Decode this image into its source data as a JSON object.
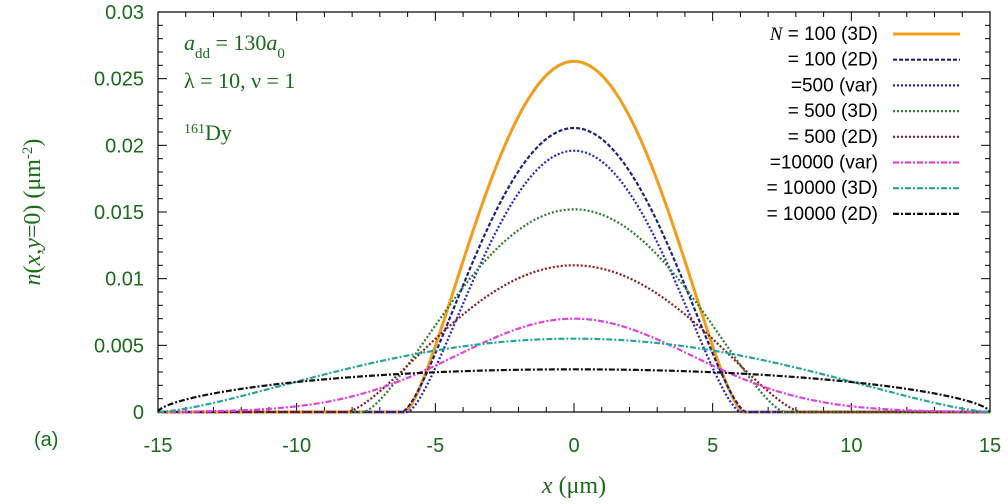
{
  "chart_data": {
    "type": "line",
    "panel_label": "(a)",
    "xlabel": "x (μm)",
    "ylabel": "n(x,y=0) (μm⁻²)",
    "xlim": [
      -15,
      15
    ],
    "ylim": [
      0,
      0.03
    ],
    "xticks": [
      "-15",
      "-10",
      "-5",
      "0",
      "5",
      "10",
      "15"
    ],
    "xtick_values": [
      -15,
      -10,
      -5,
      0,
      5,
      10,
      15
    ],
    "yticks": [
      "0",
      "0.005",
      "0.01",
      "0.015",
      "0.02",
      "0.025",
      "0.03"
    ],
    "ytick_values": [
      0,
      0.005,
      0.01,
      0.015,
      0.02,
      0.025,
      0.03
    ],
    "annotations": [
      "a_dd = 130a_0",
      "λ = 10, ν = 1",
      "161Dy"
    ],
    "legend_position": "top-right",
    "series": [
      {
        "name": "N = 100 (3D)",
        "color": "#f39c1b",
        "dash": "solid",
        "peak": 0.0263,
        "halfwidth": 6.1,
        "shape": "tf"
      },
      {
        "name": "= 100 (2D)",
        "color": "#1a237e",
        "dash": "dashed",
        "peak": 0.0213,
        "halfwidth": 6.2,
        "shape": "tf"
      },
      {
        "name": "=500 (var)",
        "color": "#2222cc",
        "dash": "dotted",
        "peak": 0.0196,
        "halfwidth": 6.0,
        "shape": "tf"
      },
      {
        "name": "= 500 (3D)",
        "color": "#2e7d32",
        "dash": "dotted",
        "peak": 0.0152,
        "halfwidth": 7.6,
        "shape": "tf"
      },
      {
        "name": "= 500 (2D)",
        "color": "#8b1a1a",
        "dash": "dotted",
        "peak": 0.011,
        "halfwidth": 8.2,
        "shape": "tf"
      },
      {
        "name": "=10000 (var)",
        "color": "#e040e0",
        "dash": "dashdot",
        "peak": 0.007,
        "halfwidth": 11.0,
        "shape": "gauss"
      },
      {
        "name": "= 10000 (3D)",
        "color": "#26a69a",
        "dash": "dashdot",
        "peak": 0.0055,
        "halfwidth": 15.0,
        "shape": "tf"
      },
      {
        "name": "= 10000 (2D)",
        "color": "#111111",
        "dash": "dashdot",
        "peak": 0.0032,
        "halfwidth": 15.0,
        "shape": "flat"
      }
    ]
  }
}
